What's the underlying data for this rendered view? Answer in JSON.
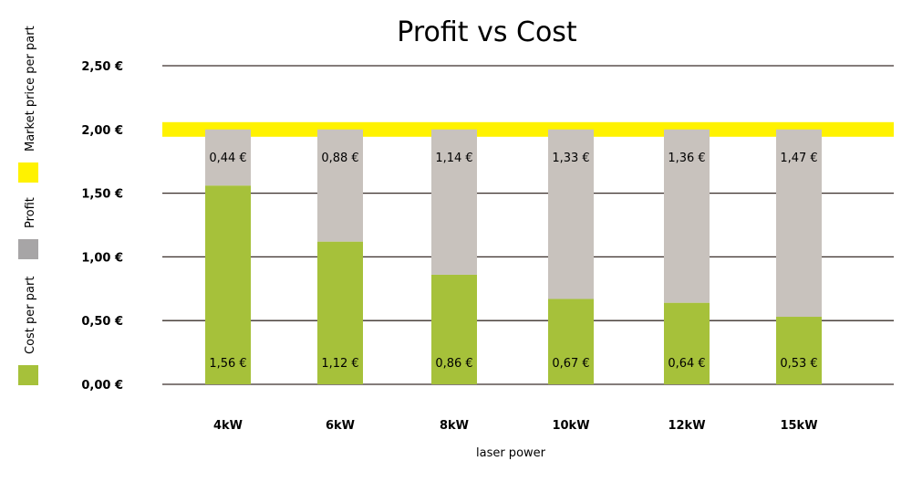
{
  "chart_data": {
    "type": "bar",
    "stacked": true,
    "title": "Profit vs Cost",
    "xlabel": "laser power",
    "ylabel": "",
    "categories": [
      "4kW",
      "6kW",
      "8kW",
      "10kW",
      "12kW",
      "15kW"
    ],
    "series": [
      {
        "name": "Cost per part",
        "color": "#a6c13a",
        "values": [
          1.56,
          1.12,
          0.86,
          0.67,
          0.64,
          0.53
        ],
        "labels": [
          "1,56 €",
          "1,12 €",
          "0,86 €",
          "0,67 €",
          "0,64 €",
          "0,53 €"
        ]
      },
      {
        "name": "Profit",
        "color": "#c8c2bd",
        "values": [
          0.44,
          0.88,
          1.14,
          1.33,
          1.36,
          1.47
        ],
        "labels": [
          "0,44 €",
          "0,88 €",
          "1,14 €",
          "1,33 €",
          "1,36 €",
          "1,47 €"
        ]
      }
    ],
    "reference_line": {
      "name": "Market price per part",
      "value": 2.0,
      "color": "#fff200"
    },
    "ylim": [
      0,
      2.5
    ],
    "yticks": [
      0,
      0.5,
      1.0,
      1.5,
      2.0,
      2.5
    ],
    "ytick_labels": [
      "0,00 €",
      "0,50 €",
      "1,00 €",
      "1,50 €",
      "2,00 €",
      "2,50 €"
    ],
    "grid": true,
    "legend_position": "left",
    "legend": [
      {
        "name": "Cost per part",
        "color": "#a6c13a"
      },
      {
        "name": "Profit",
        "color": "#a7a5a6"
      },
      {
        "name": "Market price per part",
        "color": "#fff200"
      }
    ]
  }
}
